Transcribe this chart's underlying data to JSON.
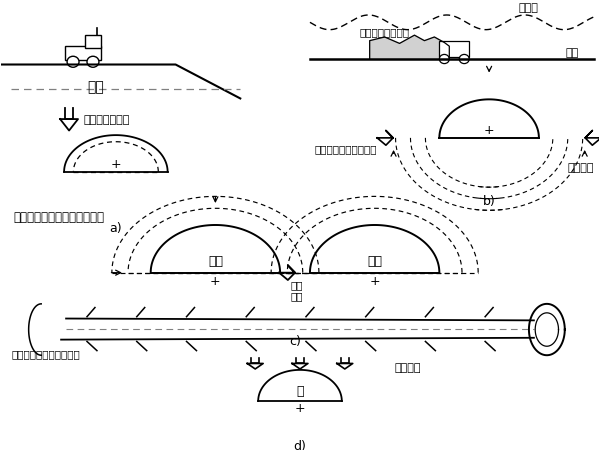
{
  "bg_color": "#ffffff",
  "text_fill": "填土",
  "text_arrow_a": "上覆荷载的增加",
  "text_yuandixing": "原地形",
  "text_weiyanjia": "围岩拱作用的捯伤",
  "text_kaiwa": "开挖",
  "text_ceya": "侧压增加",
  "text_kongtong": "有空洞后助长向上突变",
  "text_title_c": "松弛区域相互干扰，荷载增加",
  "text_jiyou": "既有",
  "text_xinshe": "新设",
  "text_xianghu1": "相互",
  "text_xianghu2": "拉伸",
  "text_crack": "不均匀下沉产生环形开裂",
  "text_sink": "引起下沉",
  "text_xin": "新",
  "label_a": "a)",
  "label_b": "b)",
  "label_c": "c)",
  "label_d": "d)"
}
